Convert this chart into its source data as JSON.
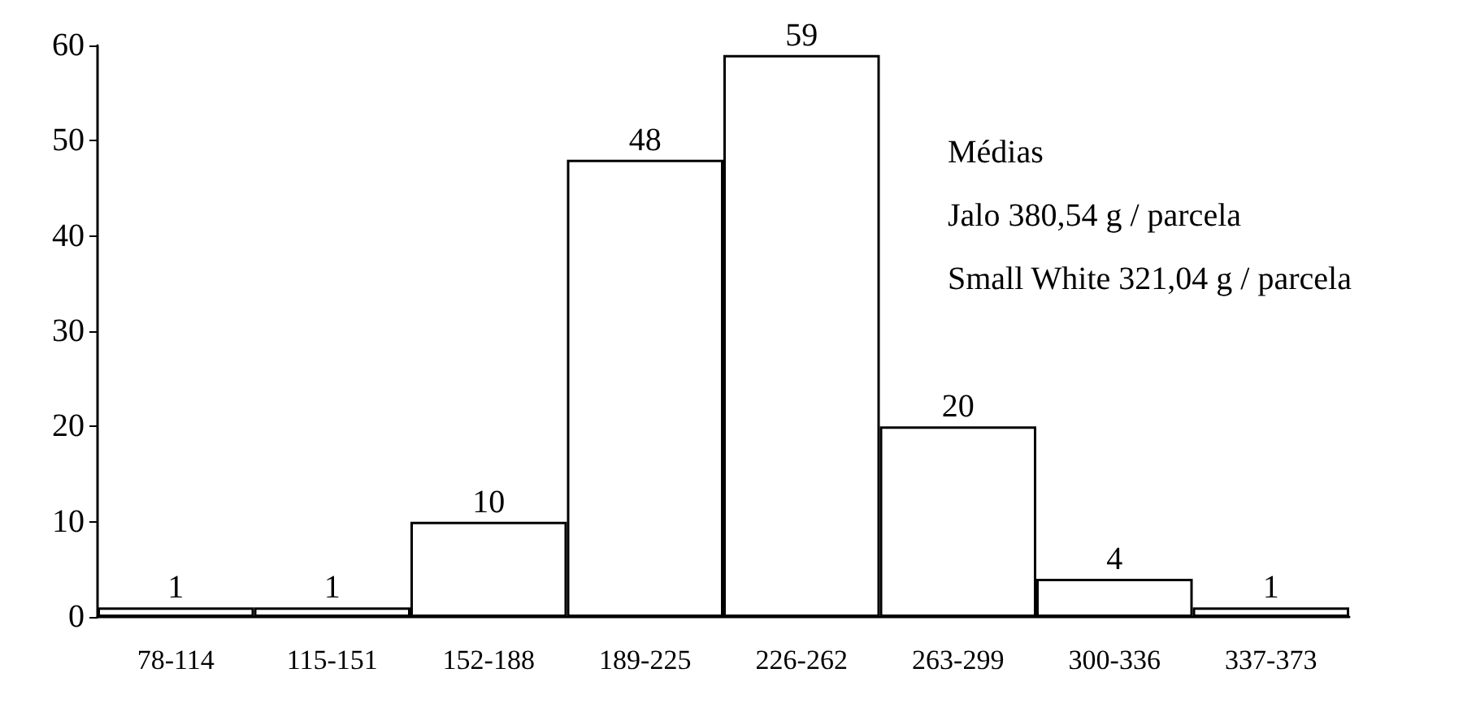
{
  "chart_data": {
    "type": "bar",
    "categories": [
      "78-114",
      "115-151",
      "152-188",
      "189-225",
      "226-262",
      "263-299",
      "300-336",
      "337-373"
    ],
    "values": [
      1,
      1,
      10,
      48,
      59,
      20,
      4,
      1
    ],
    "color": "#ffffff",
    "ylim": [
      0,
      60
    ],
    "yticks": [
      0,
      10,
      20,
      30,
      40,
      50,
      60
    ],
    "grid": false,
    "data_labels": true,
    "annotations": [
      "Médias",
      "Jalo 380,54 g / parcela",
      "Small White 321,04 g / parcela"
    ]
  }
}
